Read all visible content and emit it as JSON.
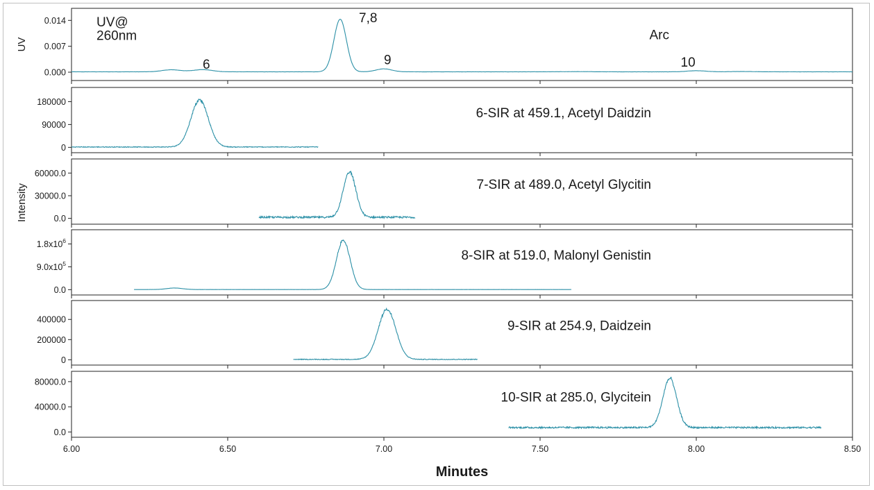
{
  "chart_data": {
    "type": "line",
    "xlabel": "Minutes",
    "xlim": [
      6.0,
      8.5
    ],
    "x_ticks": [
      "6.00",
      "6.50",
      "7.00",
      "7.50",
      "8.00",
      "8.50"
    ],
    "x_tick_values": [
      6.0,
      6.5,
      7.0,
      7.5,
      8.0,
      8.5
    ],
    "line_color": "#2a8fa6",
    "shared_ylabel": "Intensity",
    "panels": [
      {
        "id": "uv",
        "label": "",
        "ylabel": "UV",
        "ylim": [
          -0.0015,
          0.0165
        ],
        "y_ticks": [
          {
            "v": 0.0,
            "t": "0.000"
          },
          {
            "v": 0.007,
            "t": "0.007"
          },
          {
            "v": 0.014,
            "t": "0.014"
          }
        ],
        "annotations": [
          {
            "text": "UV@",
            "x": 6.08,
            "y": 0.0124
          },
          {
            "text": "260nm",
            "x": 6.08,
            "y": 0.0087
          },
          {
            "text": "6",
            "x": 6.42,
            "y": 0.0009
          },
          {
            "text": "7,8",
            "x": 6.92,
            "y": 0.0135
          },
          {
            "text": "9",
            "x": 7.0,
            "y": 0.0022
          },
          {
            "text": "Arc",
            "x": 7.85,
            "y": 0.0089
          },
          {
            "text": "10",
            "x": 7.95,
            "y": 0.0015
          }
        ],
        "x_range": [
          6.0,
          8.5
        ],
        "baseline": 0.0001,
        "noise": 2e-05,
        "peaks": [
          {
            "rt": 6.32,
            "h": 0.00055,
            "w": 0.03
          },
          {
            "rt": 6.42,
            "h": 0.0006,
            "w": 0.03
          },
          {
            "rt": 6.86,
            "h": 0.0142,
            "w": 0.02
          },
          {
            "rt": 7.0,
            "h": 0.0008,
            "w": 0.025
          },
          {
            "rt": 7.62,
            "h": 5e-05,
            "w": 0.05
          },
          {
            "rt": 8.0,
            "h": 0.0003,
            "w": 0.03
          },
          {
            "rt": 8.15,
            "h": 8e-05,
            "w": 0.04
          }
        ]
      },
      {
        "id": "sir6",
        "label": "6-SIR at 459.1, Acetyl Daidzin",
        "ylabel": "",
        "ylim": [
          -10000,
          225000
        ],
        "y_ticks": [
          {
            "v": 0,
            "t": "0"
          },
          {
            "v": 90000,
            "t": "90000"
          },
          {
            "v": 180000,
            "t": "180000"
          }
        ],
        "x_range": [
          6.0,
          6.79
        ],
        "baseline": 1500,
        "noise": 1500,
        "peaks": [
          {
            "rt": 6.41,
            "h": 185000,
            "w": 0.028
          }
        ]
      },
      {
        "id": "sir7",
        "label": "7-SIR at 489.0, Acetyl Glycitin",
        "ylabel": "",
        "ylim": [
          -4000,
          75000
        ],
        "y_ticks": [
          {
            "v": 0,
            "t": "0.0"
          },
          {
            "v": 30000,
            "t": "30000.0"
          },
          {
            "v": 60000,
            "t": "60000.0"
          }
        ],
        "x_range": [
          6.6,
          7.1
        ],
        "baseline": 1500,
        "noise": 1200,
        "peaks": [
          {
            "rt": 6.89,
            "h": 60000,
            "w": 0.02
          }
        ]
      },
      {
        "id": "sir8",
        "label": "8-SIR at 519.0, Malonyl Genistin",
        "ylabel": "",
        "ylim": [
          -100000,
          2250000
        ],
        "y_ticks": [
          {
            "v": 0,
            "t": "0.0"
          },
          {
            "v": 900000,
            "t": "9.0x10",
            "sup": "5"
          },
          {
            "v": 1800000,
            "t": "1.8x10",
            "sup": "6"
          }
        ],
        "x_range": [
          6.2,
          7.6
        ],
        "baseline": 5000,
        "noise": 1500,
        "peaks": [
          {
            "rt": 6.33,
            "h": 60000,
            "w": 0.025
          },
          {
            "rt": 6.87,
            "h": 1950000,
            "w": 0.022
          }
        ]
      },
      {
        "id": "sir9",
        "label": "9-SIR at 254.9, Daidzein",
        "ylabel": "",
        "ylim": [
          -25000,
          560000
        ],
        "y_ticks": [
          {
            "v": 0,
            "t": "0"
          },
          {
            "v": 200000,
            "t": "200000"
          },
          {
            "v": 400000,
            "t": "400000"
          }
        ],
        "x_range": [
          6.71,
          7.3
        ],
        "baseline": 4000,
        "noise": 3500,
        "peaks": [
          {
            "rt": 7.01,
            "h": 500000,
            "w": 0.028
          }
        ]
      },
      {
        "id": "sir10",
        "label": "10-SIR at 285.0, Glycitein",
        "ylabel": "",
        "ylim": [
          -4000,
          92000
        ],
        "y_ticks": [
          {
            "v": 0,
            "t": "0.0"
          },
          {
            "v": 40000,
            "t": "40000.0"
          },
          {
            "v": 80000,
            "t": "80000.0"
          }
        ],
        "x_range": [
          7.4,
          8.4
        ],
        "baseline": 7000,
        "noise": 1300,
        "peaks": [
          {
            "rt": 7.915,
            "h": 78000,
            "w": 0.022
          }
        ]
      }
    ]
  }
}
